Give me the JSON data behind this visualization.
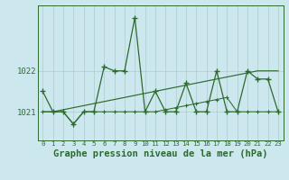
{
  "title": "Graphe pression niveau de la mer (hPa)",
  "x_values": [
    0,
    1,
    2,
    3,
    4,
    5,
    6,
    7,
    8,
    9,
    10,
    11,
    12,
    13,
    14,
    15,
    16,
    17,
    18,
    19,
    20,
    21,
    22,
    23
  ],
  "y_main": [
    1021.5,
    1021.0,
    1021.0,
    1020.7,
    1021.0,
    1021.0,
    1022.1,
    1022.0,
    1022.0,
    1023.3,
    1021.0,
    1021.5,
    1021.0,
    1021.0,
    1021.7,
    1021.0,
    1021.0,
    1022.0,
    1021.0,
    1021.0,
    1022.0,
    1021.8,
    1021.8,
    1021.0
  ],
  "y_trend": [
    1021.0,
    1021.0,
    1021.05,
    1021.1,
    1021.15,
    1021.2,
    1021.25,
    1021.3,
    1021.35,
    1021.4,
    1021.45,
    1021.5,
    1021.55,
    1021.6,
    1021.65,
    1021.7,
    1021.75,
    1021.8,
    1021.85,
    1021.9,
    1021.95,
    1022.0,
    1022.0,
    1022.0
  ],
  "y_lower": [
    1021.0,
    1021.0,
    1021.0,
    1020.7,
    1021.0,
    1021.0,
    1021.0,
    1021.0,
    1021.0,
    1021.0,
    1021.0,
    1021.0,
    1021.05,
    1021.1,
    1021.15,
    1021.2,
    1021.25,
    1021.3,
    1021.35,
    1021.0,
    1021.0,
    1021.0,
    1021.0,
    1021.0
  ],
  "line_color": "#2d6a2d",
  "bg_color": "#cce8ee",
  "grid_color": "#aacccc",
  "ylim": [
    1020.3,
    1023.6
  ],
  "yticks": [
    1021,
    1022
  ],
  "title_fontsize": 7.5
}
